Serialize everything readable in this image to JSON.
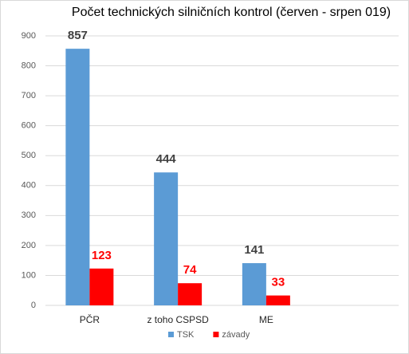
{
  "chart_data": {
    "type": "bar",
    "title": "Počet technických silničních kontrol (červen - srpen 019)",
    "categories": [
      "PČR",
      "z toho CSPSD",
      "ME",
      null
    ],
    "series": [
      {
        "name": "TSK",
        "color": "#5b9bd5",
        "label_color": "#404040",
        "values": [
          857,
          444,
          141,
          null
        ]
      },
      {
        "name": "závady",
        "color": "#ff0000",
        "label_color": "#ff0000",
        "values": [
          123,
          74,
          33,
          null
        ]
      }
    ],
    "ylim": [
      0,
      900
    ],
    "yticks": [
      0,
      100,
      200,
      300,
      400,
      500,
      600,
      700,
      800,
      900
    ],
    "grid": true,
    "legend": "bottom"
  }
}
